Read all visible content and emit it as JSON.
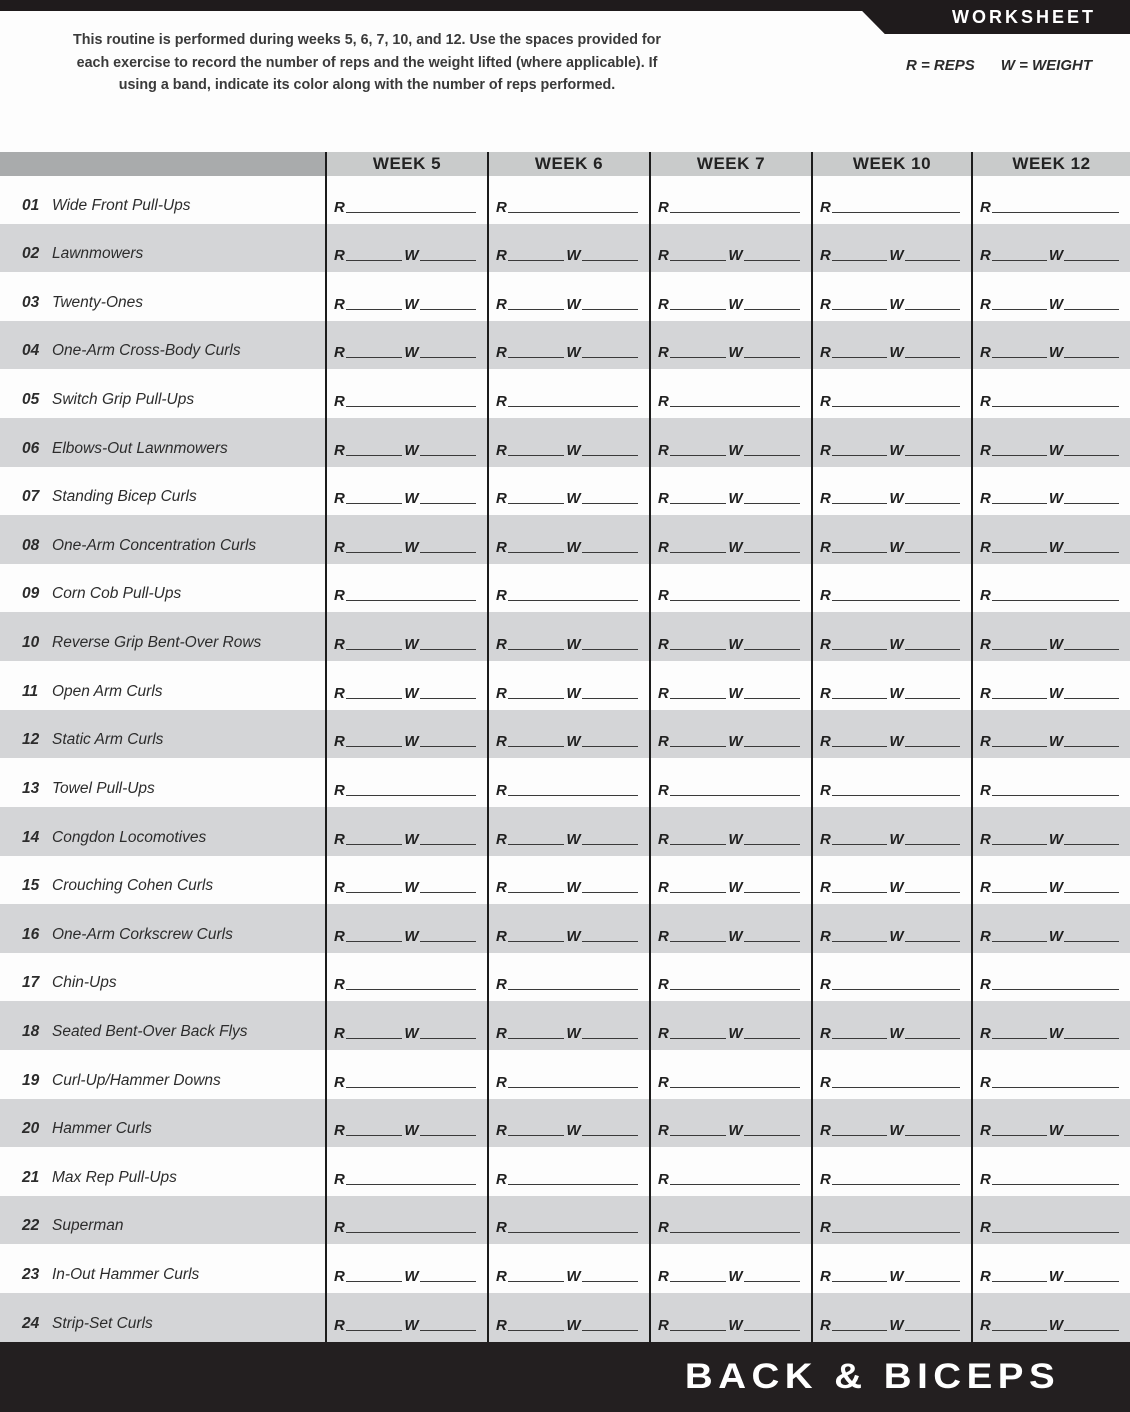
{
  "header": {
    "banner_label": "WORKSHEET",
    "intro_lines": [
      "This routine is performed during weeks 5, 6, 7, 10, and 12. Use the spaces provided for",
      "each exercise to record the number of reps and the weight lifted (where applicable). If",
      "using a band, indicate its color along with the number of reps performed."
    ],
    "legend": {
      "reps": "R = REPS",
      "weight": "W = WEIGHT"
    }
  },
  "table": {
    "week_headers": [
      "WEEK 5",
      "WEEK 6",
      "WEEK 7",
      "WEEK 10",
      "WEEK 12"
    ],
    "rep_label": "R",
    "weight_label": "W",
    "exercises": [
      {
        "num": "01",
        "name": "Wide Front Pull-Ups",
        "has_weight": false
      },
      {
        "num": "02",
        "name": "Lawnmowers",
        "has_weight": true
      },
      {
        "num": "03",
        "name": "Twenty-Ones",
        "has_weight": true
      },
      {
        "num": "04",
        "name": "One-Arm Cross-Body Curls",
        "has_weight": true
      },
      {
        "num": "05",
        "name": "Switch Grip Pull-Ups",
        "has_weight": false
      },
      {
        "num": "06",
        "name": "Elbows-Out Lawnmowers",
        "has_weight": true
      },
      {
        "num": "07",
        "name": "Standing Bicep Curls",
        "has_weight": true
      },
      {
        "num": "08",
        "name": "One-Arm Concentration Curls",
        "has_weight": true
      },
      {
        "num": "09",
        "name": "Corn Cob Pull-Ups",
        "has_weight": false
      },
      {
        "num": "10",
        "name": "Reverse Grip Bent-Over Rows",
        "has_weight": true
      },
      {
        "num": "11",
        "name": "Open Arm Curls",
        "has_weight": true
      },
      {
        "num": "12",
        "name": "Static Arm Curls",
        "has_weight": true
      },
      {
        "num": "13",
        "name": "Towel Pull-Ups",
        "has_weight": false
      },
      {
        "num": "14",
        "name": "Congdon Locomotives",
        "has_weight": true
      },
      {
        "num": "15",
        "name": "Crouching Cohen Curls",
        "has_weight": true
      },
      {
        "num": "16",
        "name": "One-Arm Corkscrew Curls",
        "has_weight": true
      },
      {
        "num": "17",
        "name": "Chin-Ups",
        "has_weight": false
      },
      {
        "num": "18",
        "name": "Seated Bent-Over Back Flys",
        "has_weight": true
      },
      {
        "num": "19",
        "name": "Curl-Up/Hammer Downs",
        "has_weight": false
      },
      {
        "num": "20",
        "name": "Hammer Curls",
        "has_weight": true
      },
      {
        "num": "21",
        "name": "Max Rep Pull-Ups",
        "has_weight": false
      },
      {
        "num": "22",
        "name": "Superman",
        "has_weight": false
      },
      {
        "num": "23",
        "name": "In-Out Hammer Curls",
        "has_weight": true
      },
      {
        "num": "24",
        "name": "Strip-Set Curls",
        "has_weight": true
      }
    ]
  },
  "footer": {
    "title": "BACK & BICEPS"
  }
}
